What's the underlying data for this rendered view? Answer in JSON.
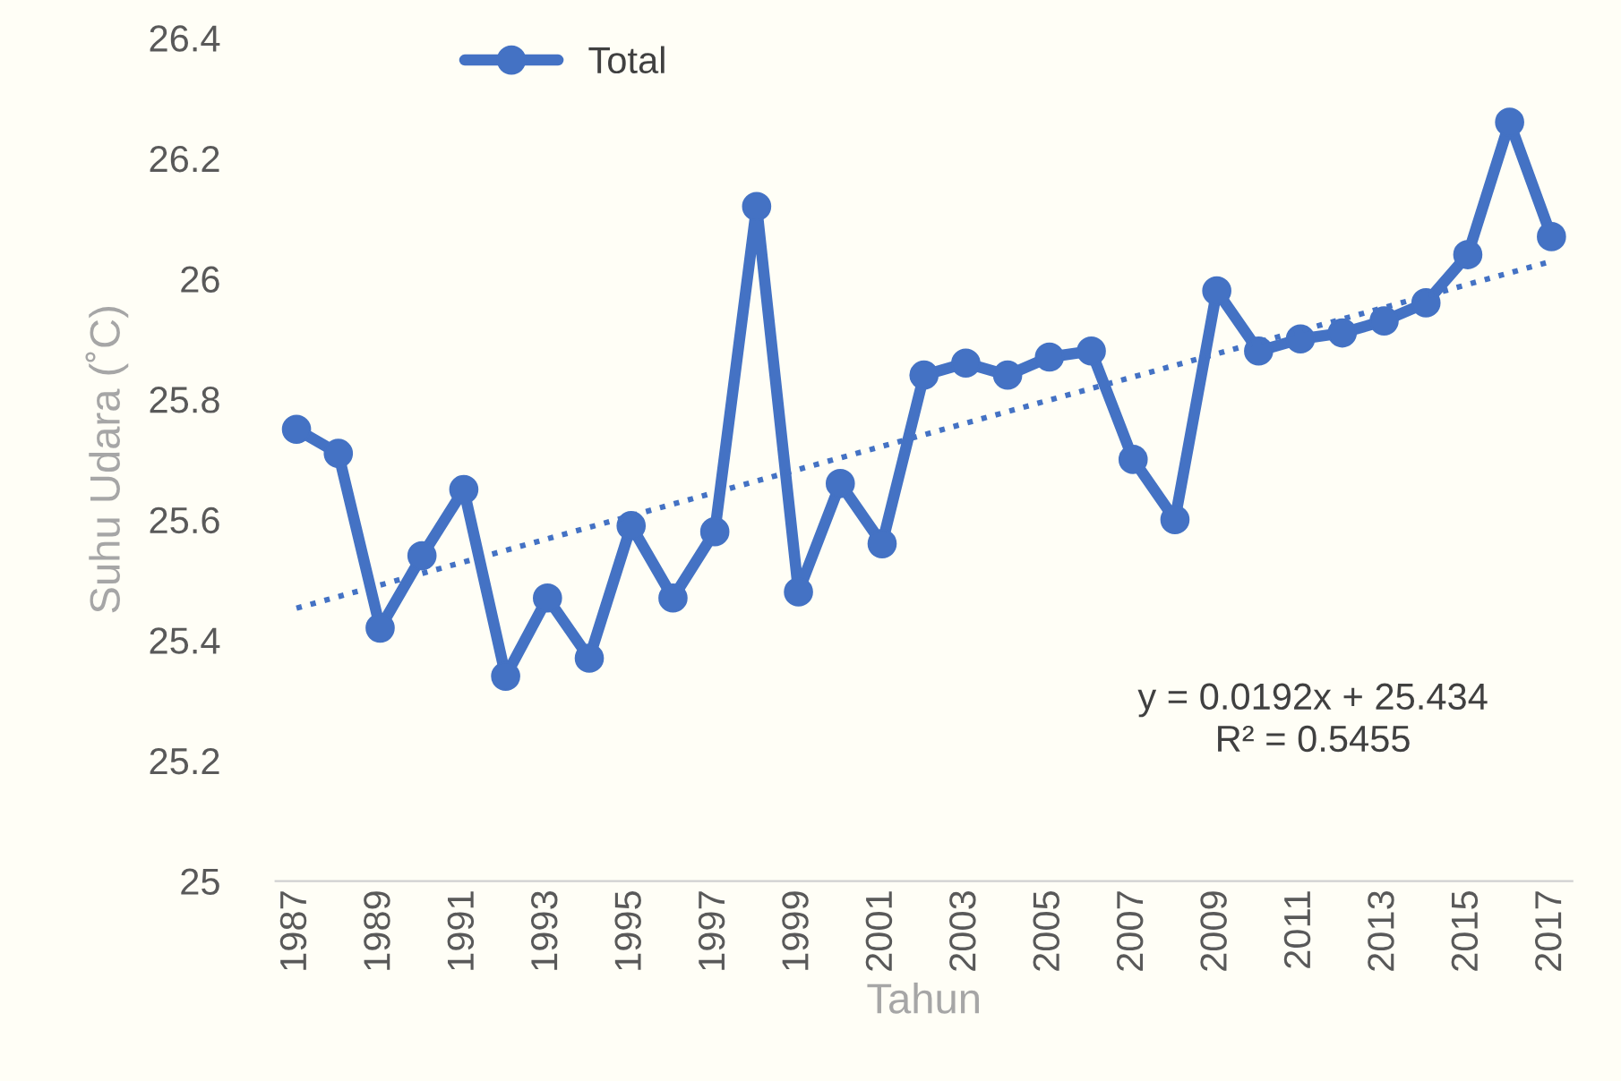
{
  "chart_data": {
    "type": "line",
    "xlabel": "Tahun",
    "ylabel": "Suhu Udara (˚C)",
    "x": [
      1987,
      1988,
      1989,
      1990,
      1991,
      1992,
      1993,
      1994,
      1995,
      1996,
      1997,
      1998,
      1999,
      2000,
      2001,
      2002,
      2003,
      2004,
      2005,
      2006,
      2007,
      2008,
      2009,
      2010,
      2011,
      2012,
      2013,
      2014,
      2015,
      2016,
      2017
    ],
    "series": [
      {
        "name": "Total",
        "color": "#4472c4",
        "marker": "circle",
        "line_style": "solid",
        "values": [
          25.75,
          25.71,
          25.42,
          25.54,
          25.65,
          25.34,
          25.47,
          25.37,
          25.59,
          25.47,
          25.58,
          26.12,
          25.48,
          25.66,
          25.56,
          25.84,
          25.86,
          25.84,
          25.87,
          25.88,
          25.7,
          25.6,
          25.98,
          25.88,
          25.9,
          25.91,
          25.93,
          25.96,
          26.04,
          26.26,
          26.07
        ]
      },
      {
        "type": "line",
        "color": "#4472c4",
        "marker": "none",
        "line_style": "dotted",
        "x": [
          1987,
          2017
        ],
        "values": [
          25.453,
          26.029
        ]
      }
    ],
    "annotations": [
      "y = 0.0192x + 25.434",
      "R² = 0.5455"
    ],
    "xlim": [
      1986.5,
      2017.5
    ],
    "xticks": [
      1987,
      1989,
      1991,
      1993,
      1995,
      1997,
      1999,
      2001,
      2003,
      2005,
      2007,
      2009,
      2011,
      2013,
      2015,
      2017
    ],
    "ylim": [
      25,
      26.4
    ],
    "yticks": [
      25,
      25.2,
      25.4,
      25.6,
      25.8,
      26,
      26.2,
      26.4
    ],
    "grid": false,
    "legend": "top left"
  }
}
